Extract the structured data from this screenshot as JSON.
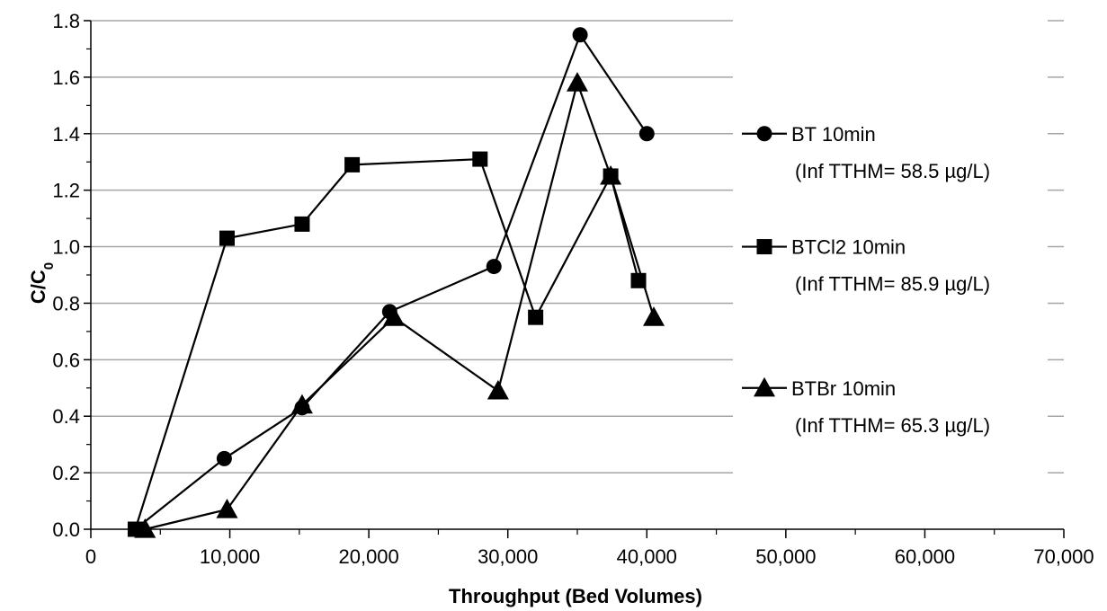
{
  "chart_data": {
    "type": "line",
    "title": "",
    "xlabel": "Throughput (Bed Volumes)",
    "ylabel_main": "C/C",
    "ylabel_sub": "0",
    "xlim": [
      0,
      70000
    ],
    "ylim": [
      0,
      1.8
    ],
    "x_ticks": [
      0,
      10000,
      20000,
      30000,
      40000,
      50000,
      60000,
      70000
    ],
    "x_tick_labels": [
      "0",
      "10,000",
      "20,000",
      "30,000",
      "40,000",
      "50,000",
      "60,000",
      "70,000"
    ],
    "y_ticks": [
      0,
      0.2,
      0.4,
      0.6,
      0.8,
      1.0,
      1.2,
      1.4,
      1.6,
      1.8
    ],
    "y_tick_labels": [
      "0.0",
      "0.2",
      "0.4",
      "0.6",
      "0.8",
      "1.0",
      "1.2",
      "1.4",
      "1.6",
      "1.8"
    ],
    "grid": "horizontal",
    "legend_position": "right",
    "series": [
      {
        "name": "BT 10min",
        "note": "(Inf TTHM= 58.5 µg/L)",
        "marker": "circle",
        "color": "#000000",
        "points": [
          [
            3200,
            0.0
          ],
          [
            9600,
            0.25
          ],
          [
            15200,
            0.43
          ],
          [
            21500,
            0.77
          ],
          [
            29000,
            0.93
          ],
          [
            35200,
            1.75
          ],
          [
            40000,
            1.4
          ]
        ]
      },
      {
        "name": "BTCl2 10min",
        "note": "(Inf TTHM= 85.9 µg/L)",
        "marker": "square",
        "color": "#000000",
        "points": [
          [
            3200,
            0.0
          ],
          [
            9800,
            1.03
          ],
          [
            15200,
            1.08
          ],
          [
            18800,
            1.29
          ],
          [
            28000,
            1.31
          ],
          [
            32000,
            0.75
          ],
          [
            37400,
            1.25
          ],
          [
            39400,
            0.88
          ]
        ]
      },
      {
        "name": "BTBr 10min",
        "note": "(Inf TTHM= 65.3 µg/L)",
        "marker": "triangle",
        "color": "#000000",
        "points": [
          [
            3900,
            0.0
          ],
          [
            9800,
            0.07
          ],
          [
            15200,
            0.44
          ],
          [
            21800,
            0.75
          ],
          [
            29300,
            0.49
          ],
          [
            35000,
            1.58
          ],
          [
            37400,
            1.25
          ],
          [
            40500,
            0.75
          ]
        ]
      }
    ]
  }
}
